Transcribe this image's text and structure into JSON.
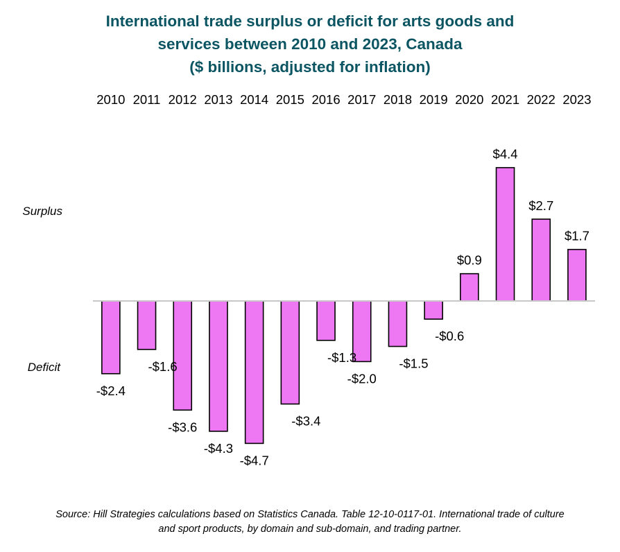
{
  "title": {
    "line1": "International trade surplus or deficit for arts goods and",
    "line2": "services between 2010 and 2023, Canada",
    "line3": "($ billions, adjusted for inflation)"
  },
  "labels": {
    "surplus": "Surplus",
    "deficit": "Deficit"
  },
  "source": {
    "line1": "Source:  Hill Strategies calculations based on Statistics Canada. Table 12-10-0117-01. International trade of culture",
    "line2": "and sport products, by domain and sub-domain, and trading partner."
  },
  "colors": {
    "title": "#0b5563",
    "bar_fill": "#ee77f3",
    "bar_stroke": "#000000",
    "baseline": "#c8c8c8"
  },
  "chart_data": {
    "type": "bar",
    "title": "International trade surplus or deficit for arts goods and services between 2010 and 2023, Canada ($ billions, adjusted for inflation)",
    "categories": [
      "2010",
      "2011",
      "2012",
      "2013",
      "2014",
      "2015",
      "2016",
      "2017",
      "2018",
      "2019",
      "2020",
      "2021",
      "2022",
      "2023"
    ],
    "values": [
      -2.4,
      -1.6,
      -3.6,
      -4.3,
      -4.7,
      -3.4,
      -1.3,
      -2.0,
      -1.5,
      -0.6,
      0.9,
      4.4,
      2.7,
      1.7
    ],
    "data_labels": [
      "-$2.4",
      "-$1.6",
      "-$3.6",
      "-$4.3",
      "-$4.7",
      "-$3.4",
      "-$1.3",
      "-$2.0",
      "-$1.5",
      "-$0.6",
      "$0.9",
      "$4.4",
      "$2.7",
      "$1.7"
    ],
    "category_axis_position": "top",
    "value_axis": "hidden",
    "grid": false,
    "legend": "none"
  }
}
